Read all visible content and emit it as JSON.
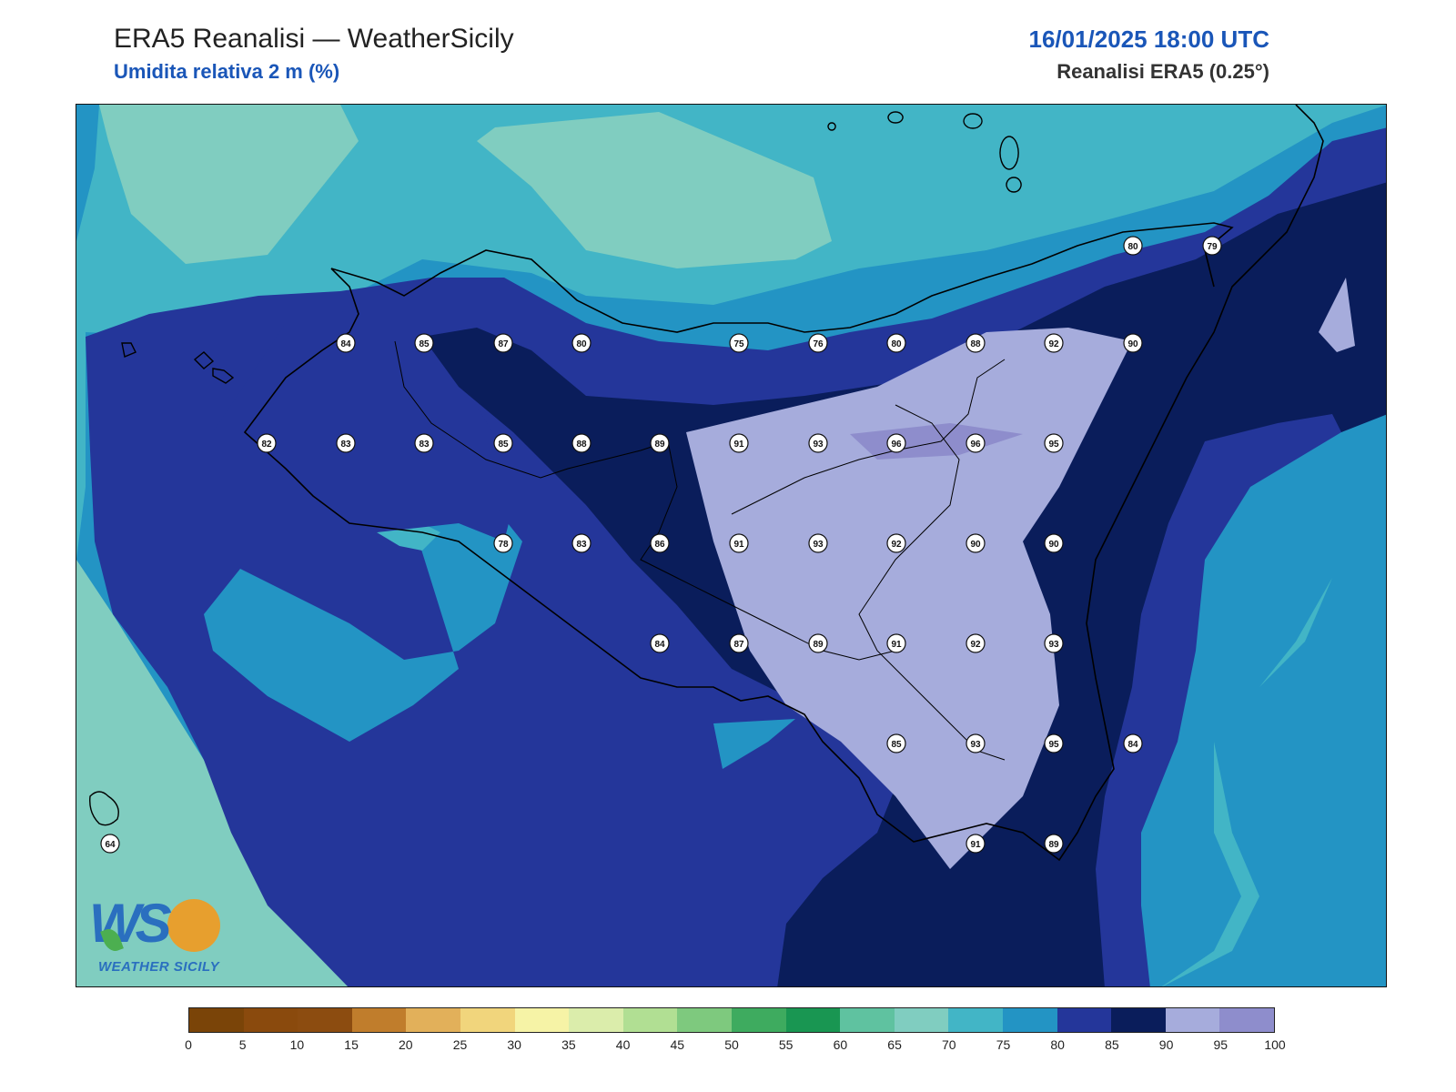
{
  "header": {
    "title": "ERA5 Reanalisi — WeatherSicily",
    "subtitle": "Umidita relativa 2 m (%)",
    "datetime": "16/01/2025 18:00 UTC",
    "source": "Reanalisi ERA5 (0.25°)"
  },
  "logo": {
    "mark": "WS",
    "caption": "WEATHER SICILY"
  },
  "legend": {
    "colors": [
      "#7a4408",
      "#8a4a0d",
      "#8c4c10",
      "#c07d2c",
      "#e2b05a",
      "#f1d57c",
      "#f6f3a6",
      "#dbedab",
      "#b1df93",
      "#7ec97e",
      "#3eab5f",
      "#199652",
      "#5fc2a0",
      "#80cdc0",
      "#42b5c6",
      "#2394c4",
      "#24369a",
      "#0a1d5b",
      "#a6acdc",
      "#8e8dcc"
    ],
    "labels": [
      "0",
      "5",
      "10",
      "15",
      "20",
      "25",
      "30",
      "35",
      "40",
      "45",
      "50",
      "55",
      "60",
      "65",
      "70",
      "75",
      "80",
      "85",
      "90",
      "95",
      "100"
    ]
  },
  "stations": [
    {
      "v": "84"
    },
    {
      "v": "85"
    },
    {
      "v": "87"
    },
    {
      "v": "80"
    },
    {
      "v": "75"
    },
    {
      "v": "76"
    },
    {
      "v": "80"
    },
    {
      "v": "88"
    },
    {
      "v": "92"
    },
    {
      "v": "90"
    },
    {
      "v": "82"
    },
    {
      "v": "83"
    },
    {
      "v": "83"
    },
    {
      "v": "85"
    },
    {
      "v": "88"
    },
    {
      "v": "89"
    },
    {
      "v": "91"
    },
    {
      "v": "93"
    },
    {
      "v": "96"
    },
    {
      "v": "96"
    },
    {
      "v": "95"
    },
    {
      "v": "78"
    },
    {
      "v": "83"
    },
    {
      "v": "86"
    },
    {
      "v": "91"
    },
    {
      "v": "93"
    },
    {
      "v": "92"
    },
    {
      "v": "90"
    },
    {
      "v": "90"
    },
    {
      "v": "84"
    },
    {
      "v": "87"
    },
    {
      "v": "89"
    },
    {
      "v": "91"
    },
    {
      "v": "92"
    },
    {
      "v": "93"
    },
    {
      "v": "85"
    },
    {
      "v": "93"
    },
    {
      "v": "95"
    },
    {
      "v": "84"
    },
    {
      "v": "91"
    },
    {
      "v": "89"
    },
    {
      "v": "80"
    },
    {
      "v": "79"
    },
    {
      "v": "64"
    }
  ]
}
